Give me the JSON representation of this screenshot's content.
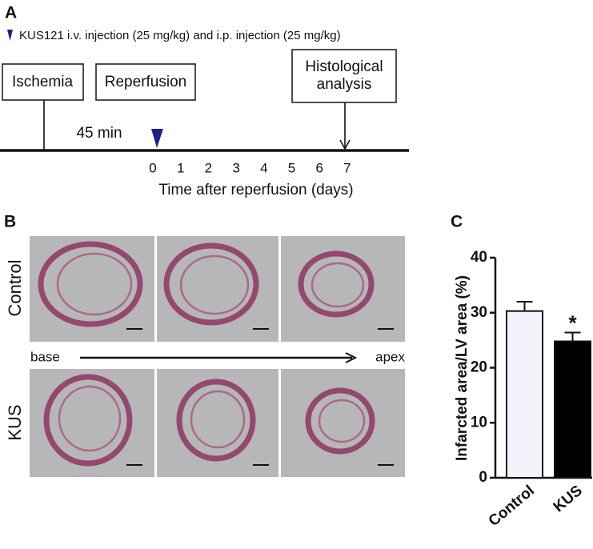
{
  "panel_a": {
    "label": "A",
    "legend": "KUS121 i.v. injection (25 mg/kg) and i.p. injection (25 mg/kg)",
    "boxes": [
      "Ischemia",
      "Reperfusion",
      [
        "Histological",
        "analysis"
      ]
    ],
    "duration": "45 min",
    "ticks": [
      0,
      1,
      2,
      3,
      4,
      5,
      6,
      7
    ],
    "axis_label": "Time after reperfusion (days)"
  },
  "panel_b": {
    "label": "B",
    "rows": [
      "Control",
      "KUS"
    ],
    "start": "base",
    "end": "apex"
  },
  "chart_data": {
    "type": "bar",
    "panel_label": "C",
    "categories": [
      "Control",
      "KUS"
    ],
    "values": [
      30.3,
      24.8
    ],
    "errors": [
      1.7,
      1.6
    ],
    "colors": [
      "#f3f4fb",
      "#000000"
    ],
    "y_label": "Infarcted area/LV area (%)",
    "annotation": "*",
    "ylim": [
      0,
      40
    ],
    "yticks": [
      0,
      10,
      20,
      30,
      40
    ]
  }
}
